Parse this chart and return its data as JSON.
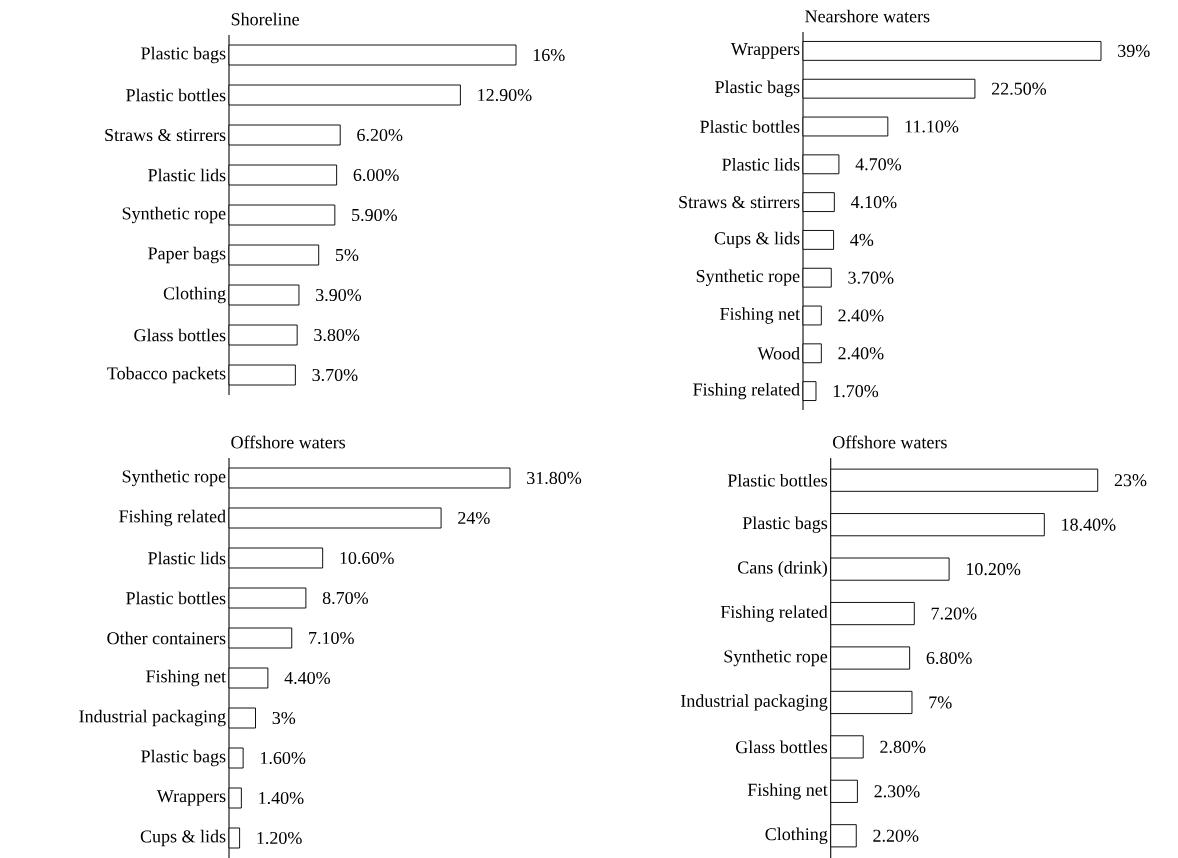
{
  "chart_data": [
    {
      "type": "bar",
      "orientation": "horizontal",
      "title": "Shoreline",
      "categories": [
        "Plastic bags",
        "Plastic bottles",
        "Straws & stirrers",
        "Plastic lids",
        "Synthetic rope",
        "Paper bags",
        "Clothing",
        "Glass bottles",
        "Tobacco packets"
      ],
      "values": [
        16,
        12.9,
        6.2,
        6.0,
        5.9,
        5,
        3.9,
        3.8,
        3.7
      ],
      "value_labels": [
        "16%",
        "12.90%",
        "6.20%",
        "6.00%",
        "5.90%",
        "5%",
        "3.90%",
        "3.80%",
        "3.70%"
      ],
      "color": "#ffffff",
      "tick_labels": "y"
    },
    {
      "type": "bar",
      "orientation": "horizontal",
      "title": "Nearshore waters",
      "categories": [
        "Wrappers",
        "Plastic bags",
        "Plastic bottles",
        "Plastic lids",
        "Straws & stirrers",
        "Cups & lids",
        "Synthetic rope",
        "Fishing net",
        "Wood",
        "Fishing related"
      ],
      "values": [
        39,
        22.5,
        11.1,
        4.7,
        4.1,
        4,
        3.7,
        2.4,
        2.4,
        1.7
      ],
      "value_labels": [
        "39%",
        "22.50%",
        "11.10%",
        "4.70%",
        "4.10%",
        "4%",
        "3.70%",
        "2.40%",
        "2.40%",
        "1.70%"
      ],
      "color": "#ffffff",
      "tick_labels": "y"
    },
    {
      "type": "bar",
      "orientation": "horizontal",
      "title": "Offshore waters",
      "categories": [
        "Synthetic rope",
        "Fishing related",
        "Plastic lids",
        "Plastic bottles",
        "Other containers",
        "Fishing net",
        "Industrial packaging",
        "Plastic bags",
        "Wrappers",
        "Cups & lids"
      ],
      "values": [
        31.8,
        24,
        10.6,
        8.7,
        7.1,
        4.4,
        3,
        1.6,
        1.4,
        1.2
      ],
      "value_labels": [
        "31.80%",
        "24%",
        "10.60%",
        "8.70%",
        "7.10%",
        "4.40%",
        "3%",
        "1.60%",
        "1.40%",
        "1.20%"
      ],
      "color": "#ffffff",
      "tick_labels": "y"
    },
    {
      "type": "bar",
      "orientation": "horizontal",
      "title": "Offshore waters",
      "categories": [
        "Plastic bottles",
        "Plastic bags",
        "Cans (drink)",
        "Fishing related",
        "Synthetic rope",
        "Industrial packaging",
        "Glass bottles",
        "Fishing net",
        "Clothing"
      ],
      "values": [
        23,
        18.4,
        10.2,
        7.2,
        6.8,
        7,
        2.8,
        2.3,
        2.2
      ],
      "value_labels": [
        "23%",
        "18.40%",
        "10.20%",
        "7.20%",
        "6.80%",
        "7%",
        "2.80%",
        "2.30%",
        "2.20%"
      ],
      "color": "#ffffff",
      "tick_labels": "y"
    }
  ]
}
